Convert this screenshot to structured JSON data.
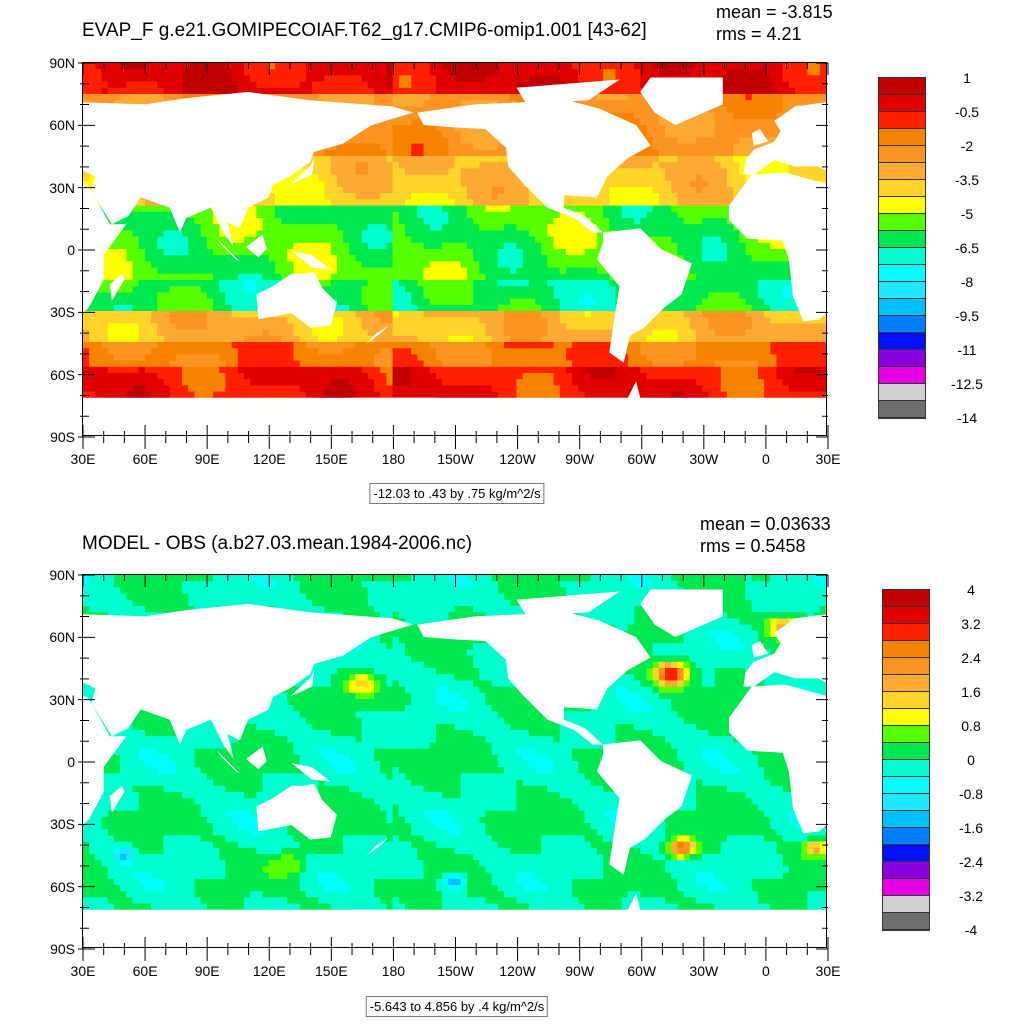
{
  "colors": [
    "#c00000",
    "#e00000",
    "#ff2000",
    "#f58300",
    "#fb9420",
    "#fdaa35",
    "#ffd42a",
    "#ffff00",
    "#55ff00",
    "#00e850",
    "#00ffd0",
    "#00ffff",
    "#1ee6ff",
    "#00c0ff",
    "#0080ff",
    "#0010ff",
    "#8a00dd",
    "#e600e6",
    "#d0d0d0",
    "#707070"
  ],
  "land_color": "#ffffff",
  "lat_labels": [
    "90N",
    "60N",
    "30N",
    "0",
    "30S",
    "60S",
    "90S"
  ],
  "lon_labels": [
    "30E",
    "60E",
    "90E",
    "120E",
    "150E",
    "180",
    "150W",
    "120W",
    "90W",
    "60W",
    "30W",
    "0",
    "30E"
  ],
  "panels": [
    {
      "title": "EVAP_F g.e21.GOMIPECOIAF.T62_g17.CMIP6-omip1.001 [43-62]",
      "mean": "mean = -3.815",
      "rms": "rms = 4.21",
      "info": "-12.03 to .43 by .75 kg/m^2/s",
      "colorbar_labels": [
        "1",
        "-0.5",
        "-2",
        "-3.5",
        "-5",
        "-6.5",
        "-8",
        "-9.5",
        "-11",
        "-12.5",
        "-14"
      ],
      "level_max": 1,
      "level_step": 0.75
    },
    {
      "title": "MODEL - OBS (a.b27.03.mean.1984-2006.nc)",
      "mean": "mean = 0.03633",
      "rms": "rms = 0.5458",
      "info": "-5.643 to 4.856 by .4 kg/m^2/s",
      "colorbar_labels": [
        "4",
        "3.2",
        "2.4",
        "1.6",
        "0.8",
        "0",
        "-0.8",
        "-1.6",
        "-2.4",
        "-3.2",
        "-4"
      ],
      "level_max": 4,
      "level_step": 0.4
    }
  ]
}
